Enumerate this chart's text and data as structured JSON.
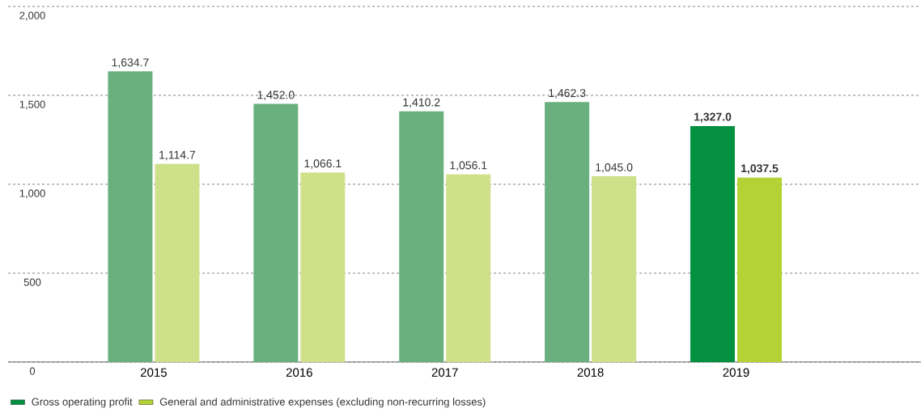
{
  "chart_data": {
    "type": "bar",
    "categories": [
      "2015",
      "2016",
      "2017",
      "2018",
      "2019"
    ],
    "series": [
      {
        "name": "Gross operating profit",
        "color": "#03913f",
        "colors": [
          "#6ab07f",
          "#6ab07f",
          "#6ab07f",
          "#6ab07f",
          "#03913f"
        ],
        "values": [
          1634.7,
          1452.0,
          1410.2,
          1462.3,
          1327.0
        ],
        "value_labels": [
          "1,634.7",
          "1,452.0",
          "1,410.2",
          "1,462.3",
          "**1,327.0**"
        ]
      },
      {
        "name": "General and administrative expenses (excluding non-recurring losses)",
        "color": "#b4d235",
        "colors": [
          "#cfe08a",
          "#cfe08a",
          "#cfe08a",
          "#cfe08a",
          "#b4d235"
        ],
        "values": [
          1114.7,
          1066.1,
          1056.1,
          1045.0,
          1037.5
        ],
        "value_labels": [
          "1,114.7",
          "1,066.1",
          "1,056.1",
          "1,045.0",
          "**1,037.5**"
        ]
      }
    ],
    "ylim": [
      0,
      2000
    ],
    "yticks": [
      {
        "value": 0,
        "label": "0"
      },
      {
        "value": 500,
        "label": "500"
      },
      {
        "value": 1000,
        "label": "1,000"
      },
      {
        "value": 1500,
        "label": "1,500"
      },
      {
        "value": 2000,
        "label": "2,000"
      }
    ],
    "grid": "y",
    "legend": "bottom left"
  }
}
